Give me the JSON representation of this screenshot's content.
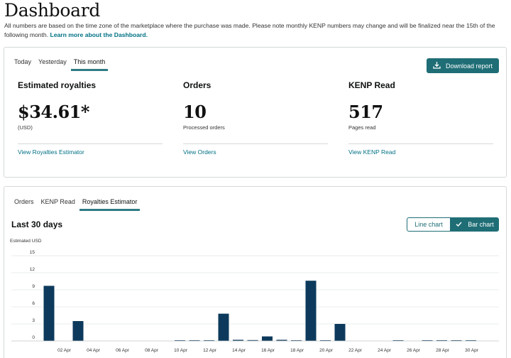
{
  "page": {
    "title": "Dashboard",
    "note": "All numbers are based on the time zone of the marketplace where the purchase was made. Please note monthly KENP numbers may change and will be finalized near the 15th of the following month.",
    "note_link": "Learn more about the Dashboard."
  },
  "summary": {
    "tabs": [
      {
        "label": "Today"
      },
      {
        "label": "Yesterday"
      },
      {
        "label": "This month"
      }
    ],
    "active_tab": "This month",
    "download_label": "Download report",
    "metrics": [
      {
        "title": "Estimated royalties",
        "value": "$34.61*",
        "sub": "(USD)",
        "link": "View Royalties Estimator"
      },
      {
        "title": "Orders",
        "value": "10",
        "sub": "Processed orders",
        "link": "View Orders"
      },
      {
        "title": "KENP Read",
        "value": "517",
        "sub": "Pages read",
        "link": "View KENP Read"
      }
    ]
  },
  "report": {
    "tabs": [
      {
        "label": "Orders"
      },
      {
        "label": "KENP Read"
      },
      {
        "label": "Royalties Estimator"
      }
    ],
    "active_tab": "Royalties Estimator",
    "chart_title": "Last 30 days",
    "line_chart_label": "Line chart",
    "bar_chart_label": "Bar chart",
    "selected_view": "Bar chart"
  },
  "colors": {
    "accent": "#1f6e76",
    "link": "#007185",
    "bar": "#0d3a5c"
  },
  "chart_data": {
    "type": "bar",
    "ylabel": "Estimated USD",
    "ylim": [
      0,
      15
    ],
    "yticks": [
      0,
      3,
      6,
      9,
      12,
      15
    ],
    "categories": [
      "01 Apr",
      "02 Apr",
      "03 Apr",
      "04 Apr",
      "05 Apr",
      "06 Apr",
      "07 Apr",
      "08 Apr",
      "09 Apr",
      "10 Apr",
      "11 Apr",
      "12 Apr",
      "13 Apr",
      "14 Apr",
      "15 Apr",
      "16 Apr",
      "17 Apr",
      "18 Apr",
      "19 Apr",
      "20 Apr",
      "21 Apr",
      "22 Apr",
      "23 Apr",
      "24 Apr",
      "25 Apr",
      "26 Apr",
      "27 Apr",
      "28 Apr",
      "29 Apr",
      "30 Apr"
    ],
    "x_tick_labels": [
      "02 Apr",
      "04 Apr",
      "06 Apr",
      "08 Apr",
      "10 Apr",
      "12 Apr",
      "14 Apr",
      "16 Apr",
      "18 Apr",
      "20 Apr",
      "22 Apr",
      "24 Apr",
      "26 Apr",
      "28 Apr",
      "30 Apr"
    ],
    "values": [
      9.7,
      0,
      3.5,
      0,
      0,
      0,
      0,
      0,
      0,
      0.05,
      0.1,
      0.1,
      4.8,
      0.2,
      0.15,
      0.8,
      0.2,
      0.1,
      10.6,
      0.1,
      3.0,
      0,
      0,
      0,
      0.1,
      0,
      0.05,
      0.05,
      0.05,
      0.05
    ]
  }
}
